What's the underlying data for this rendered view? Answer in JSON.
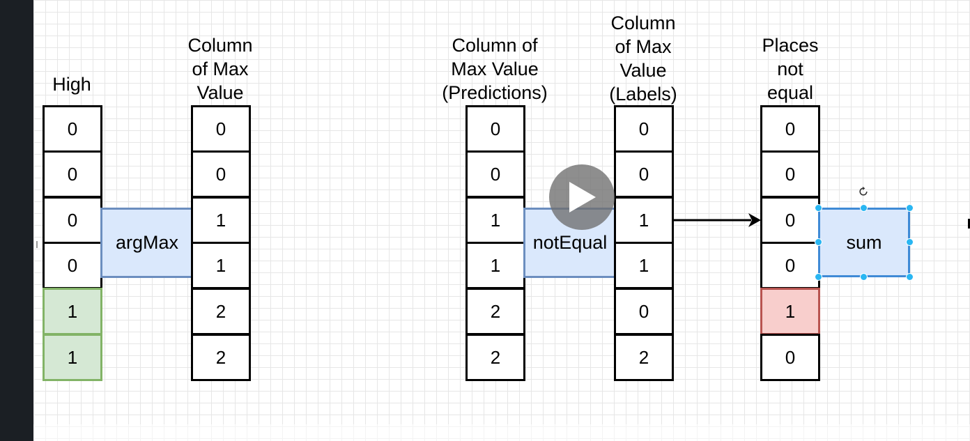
{
  "columns": {
    "high": {
      "header": "High",
      "cells": [
        "0",
        "0",
        "0",
        "0",
        "1",
        "1"
      ]
    },
    "argmax_result": {
      "header": "Column\nof Max\nValue",
      "cells": [
        "0",
        "0",
        "1",
        "1",
        "2",
        "2"
      ]
    },
    "predictions": {
      "header": "Column of\nMax Value\n(Predictions)",
      "cells": [
        "0",
        "0",
        "1",
        "1",
        "2",
        "2"
      ]
    },
    "labels": {
      "header": "Column\nof Max\nValue\n(Labels)",
      "cells": [
        "0",
        "0",
        "1",
        "1",
        "0",
        "2"
      ]
    },
    "not_equal": {
      "header": "Places\nnot\nequal",
      "cells": [
        "0",
        "0",
        "0",
        "0",
        "1",
        "0"
      ]
    }
  },
  "operations": {
    "argmax": "argMax",
    "not_equal": "notEqual",
    "sum": "sum"
  },
  "icons": {
    "play": "play-icon",
    "rotate": "rotate-icon",
    "arrow": "arrow-right-icon"
  },
  "colors": {
    "grid": "#e6e6e6",
    "op_fill": "#dae8fc",
    "op_stroke": "#6c8ebf",
    "highlight_green": "#d5e8d4",
    "highlight_red": "#f8cecc",
    "selection_handle": "#29b6f2"
  }
}
